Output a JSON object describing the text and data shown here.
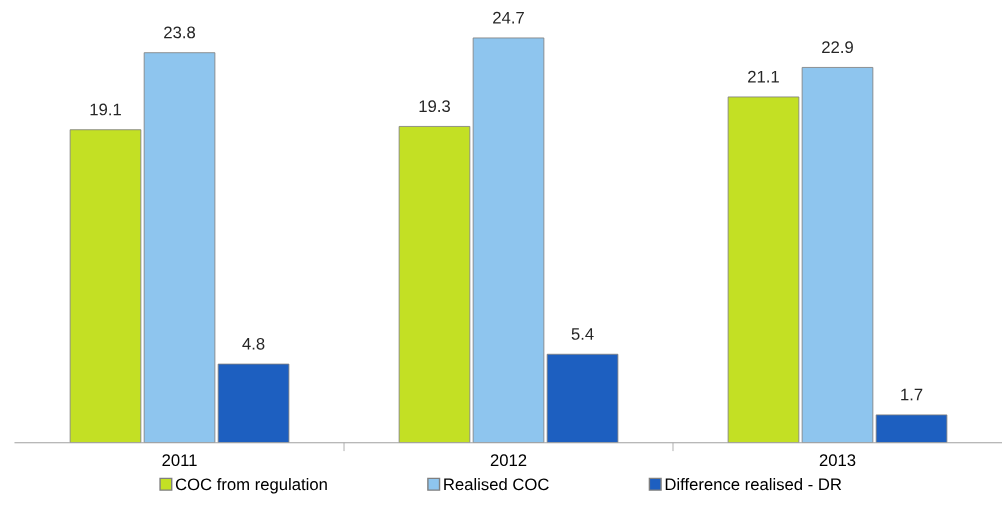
{
  "chart_data": {
    "type": "bar",
    "categories": [
      "2011",
      "2012",
      "2013"
    ],
    "series": [
      {
        "name": "COC from regulation",
        "color": "#c3e024",
        "values": [
          19.1,
          19.3,
          21.1
        ]
      },
      {
        "name": "Realised COC",
        "color": "#8ec5ee",
        "values": [
          23.8,
          24.7,
          22.9
        ]
      },
      {
        "name": "Difference realised - DR",
        "color": "#1d5fc0",
        "values": [
          4.8,
          5.4,
          1.7
        ]
      }
    ],
    "data_labels": true,
    "legend": "bottom",
    "grid": false
  }
}
